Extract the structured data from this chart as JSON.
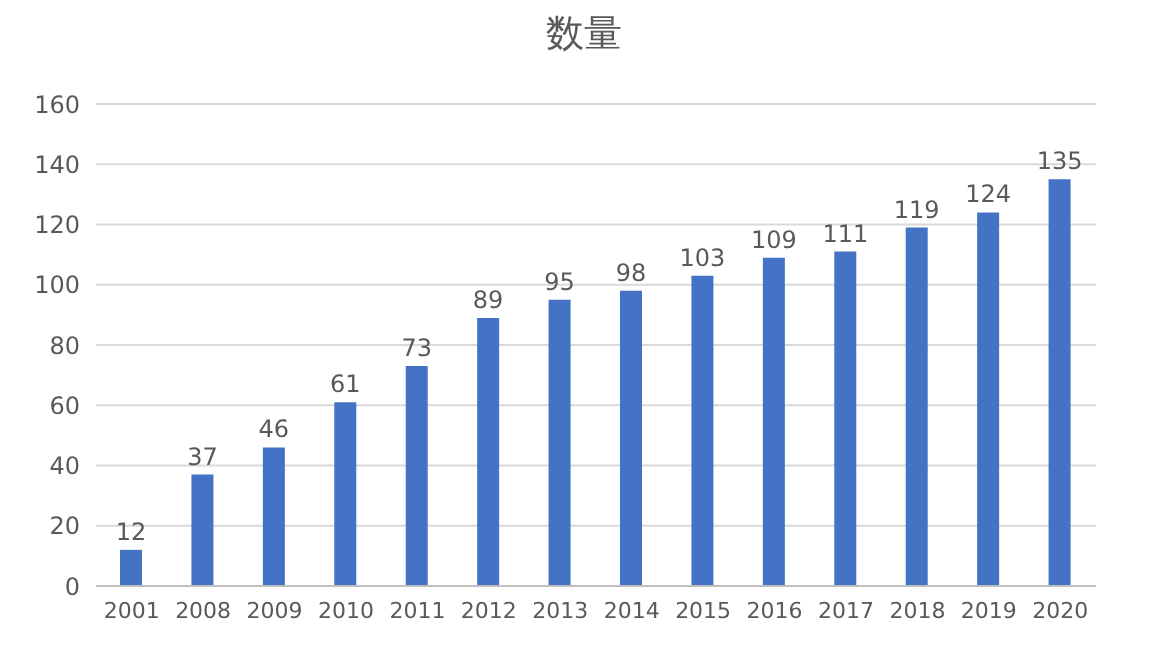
{
  "chart_data": {
    "type": "bar",
    "title": "数量",
    "categories": [
      "2001",
      "2008",
      "2009",
      "2010",
      "2011",
      "2012",
      "2013",
      "2014",
      "2015",
      "2016",
      "2017",
      "2018",
      "2019",
      "2020"
    ],
    "values": [
      12,
      37,
      46,
      61,
      73,
      89,
      95,
      98,
      103,
      109,
      111,
      119,
      124,
      135
    ],
    "color": "#4472c4",
    "ylim": [
      0,
      160
    ],
    "yticks": [
      0,
      20,
      40,
      60,
      80,
      100,
      120,
      140,
      160
    ],
    "grid": "y",
    "data_labels": true
  }
}
